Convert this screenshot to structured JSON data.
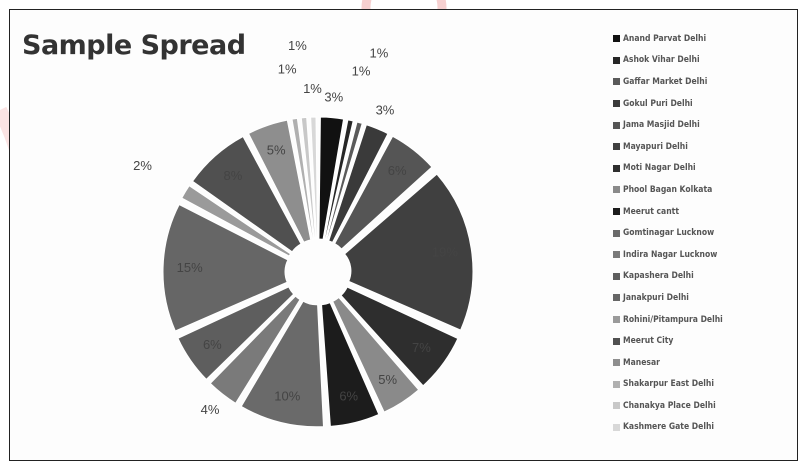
{
  "chart_data": {
    "type": "pie",
    "title": "Sample Spread",
    "legend_position": "right",
    "slices": [
      {
        "label": "Anand Parvat Delhi",
        "value": 3,
        "display": "3%",
        "color": "#111111"
      },
      {
        "label": "Ashok Vihar Delhi",
        "value": 1,
        "display": "1%",
        "color": "#262626"
      },
      {
        "label": "Gaffar Market Delhi",
        "value": 1,
        "display": "1%",
        "color": "#5a5a5a"
      },
      {
        "label": "Gokul Puri Delhi",
        "value": 3,
        "display": "3%",
        "color": "#3a3a3a"
      },
      {
        "label": "Jama Masjid Delhi",
        "value": 6,
        "display": "6%",
        "color": "#555555"
      },
      {
        "label": "Mayapuri Delhi",
        "value": 19,
        "display": "19%",
        "color": "#404040"
      },
      {
        "label": "Moti Nagar Delhi",
        "value": 7,
        "display": "7%",
        "color": "#2e2e2e"
      },
      {
        "label": "Phool Bagan Kolkata",
        "value": 5,
        "display": "5%",
        "color": "#8a8a8a"
      },
      {
        "label": "Meerut cantt",
        "value": 6,
        "display": "6%",
        "color": "#1c1c1c"
      },
      {
        "label": "Gomtinagar Lucknow",
        "value": 10,
        "display": "10%",
        "color": "#6a6a6a"
      },
      {
        "label": "Indira Nagar Lucknow",
        "value": 4,
        "display": "4%",
        "color": "#7a7a7a"
      },
      {
        "label": "Kapashera Delhi",
        "value": 6,
        "display": "6%",
        "color": "#5e5e5e"
      },
      {
        "label": "Janakpuri Delhi",
        "value": 15,
        "display": "15%",
        "color": "#666666"
      },
      {
        "label": "Rohini/Pitampura Delhi",
        "value": 2,
        "display": "2%",
        "color": "#9a9a9a"
      },
      {
        "label": "Meerut City",
        "value": 8,
        "display": "8%",
        "color": "#505050"
      },
      {
        "label": "Manesar",
        "value": 5,
        "display": "5%",
        "color": "#8e8e8e"
      },
      {
        "label": "Shakarpur East Delhi",
        "value": 1,
        "display": "1%",
        "color": "#b0b0b0"
      },
      {
        "label": "Chanakya Place Delhi",
        "value": 1,
        "display": "1%",
        "color": "#c8c8c8"
      },
      {
        "label": "Kashmere Gate Delhi",
        "value": 1,
        "display": "1%",
        "color": "#d8d8d8"
      }
    ]
  },
  "watermark_color": "#e8000d"
}
